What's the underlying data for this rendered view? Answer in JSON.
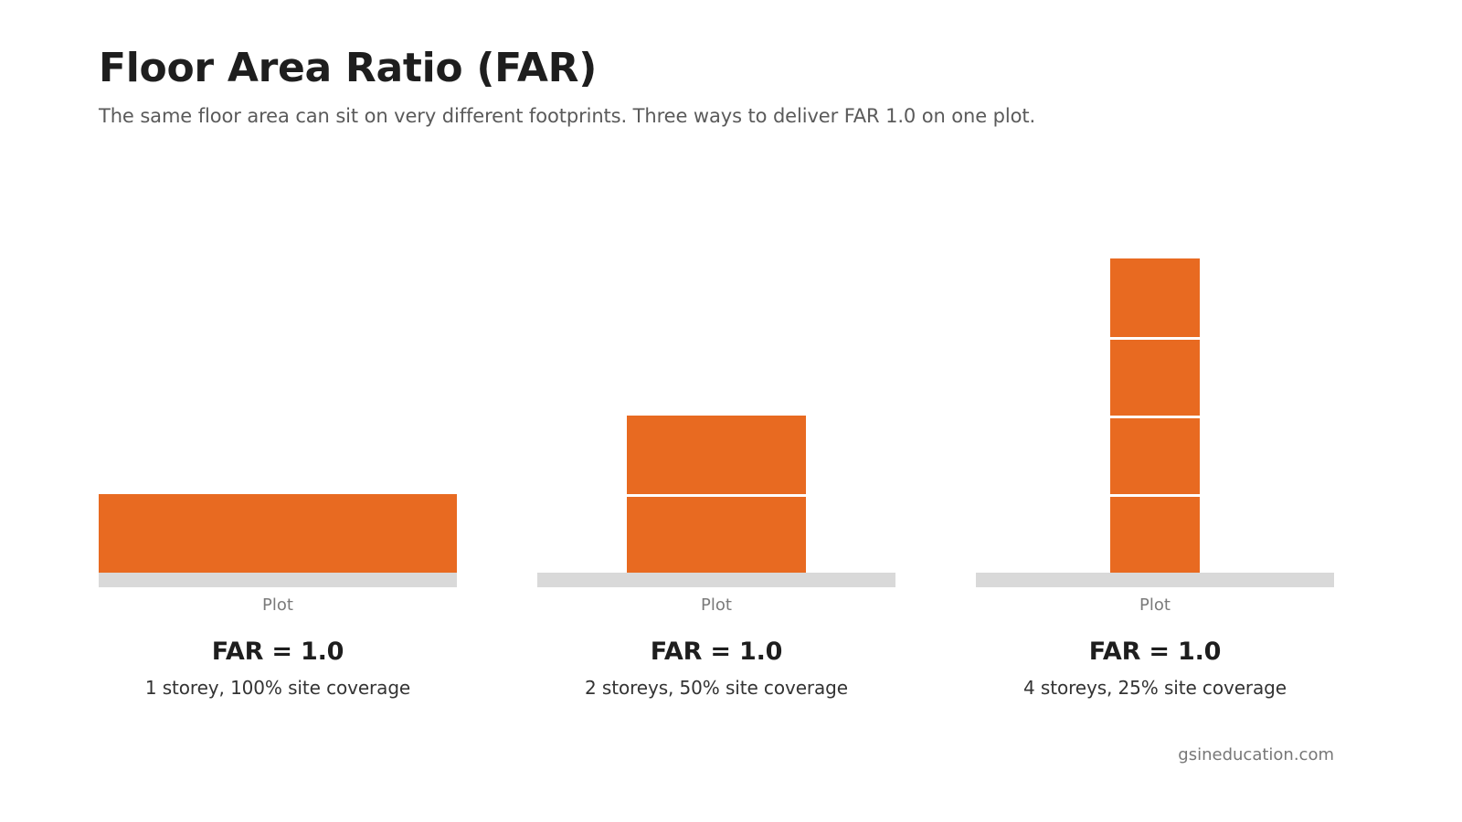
{
  "header": {
    "title": "Floor Area Ratio (FAR)",
    "subtitle": "The same floor area can sit on very different footprints. Three ways to deliver FAR 1.0 on one plot."
  },
  "colors": {
    "building": "#e86a21",
    "ground": "#d9d9d9",
    "floor_divider": "#ffffff"
  },
  "scenarios": [
    {
      "storeys": 1,
      "coverage": 1.0,
      "plot_label": "Plot",
      "far_label": "FAR = 1.0",
      "description": "1 storey, 100% site coverage"
    },
    {
      "storeys": 2,
      "coverage": 0.5,
      "plot_label": "Plot",
      "far_label": "FAR = 1.0",
      "description": "2 storeys, 50% site coverage"
    },
    {
      "storeys": 4,
      "coverage": 0.25,
      "plot_label": "Plot",
      "far_label": "FAR = 1.0",
      "description": "4 storeys, 25% site coverage"
    }
  ],
  "footer": {
    "credit": "gsineducation.com"
  }
}
